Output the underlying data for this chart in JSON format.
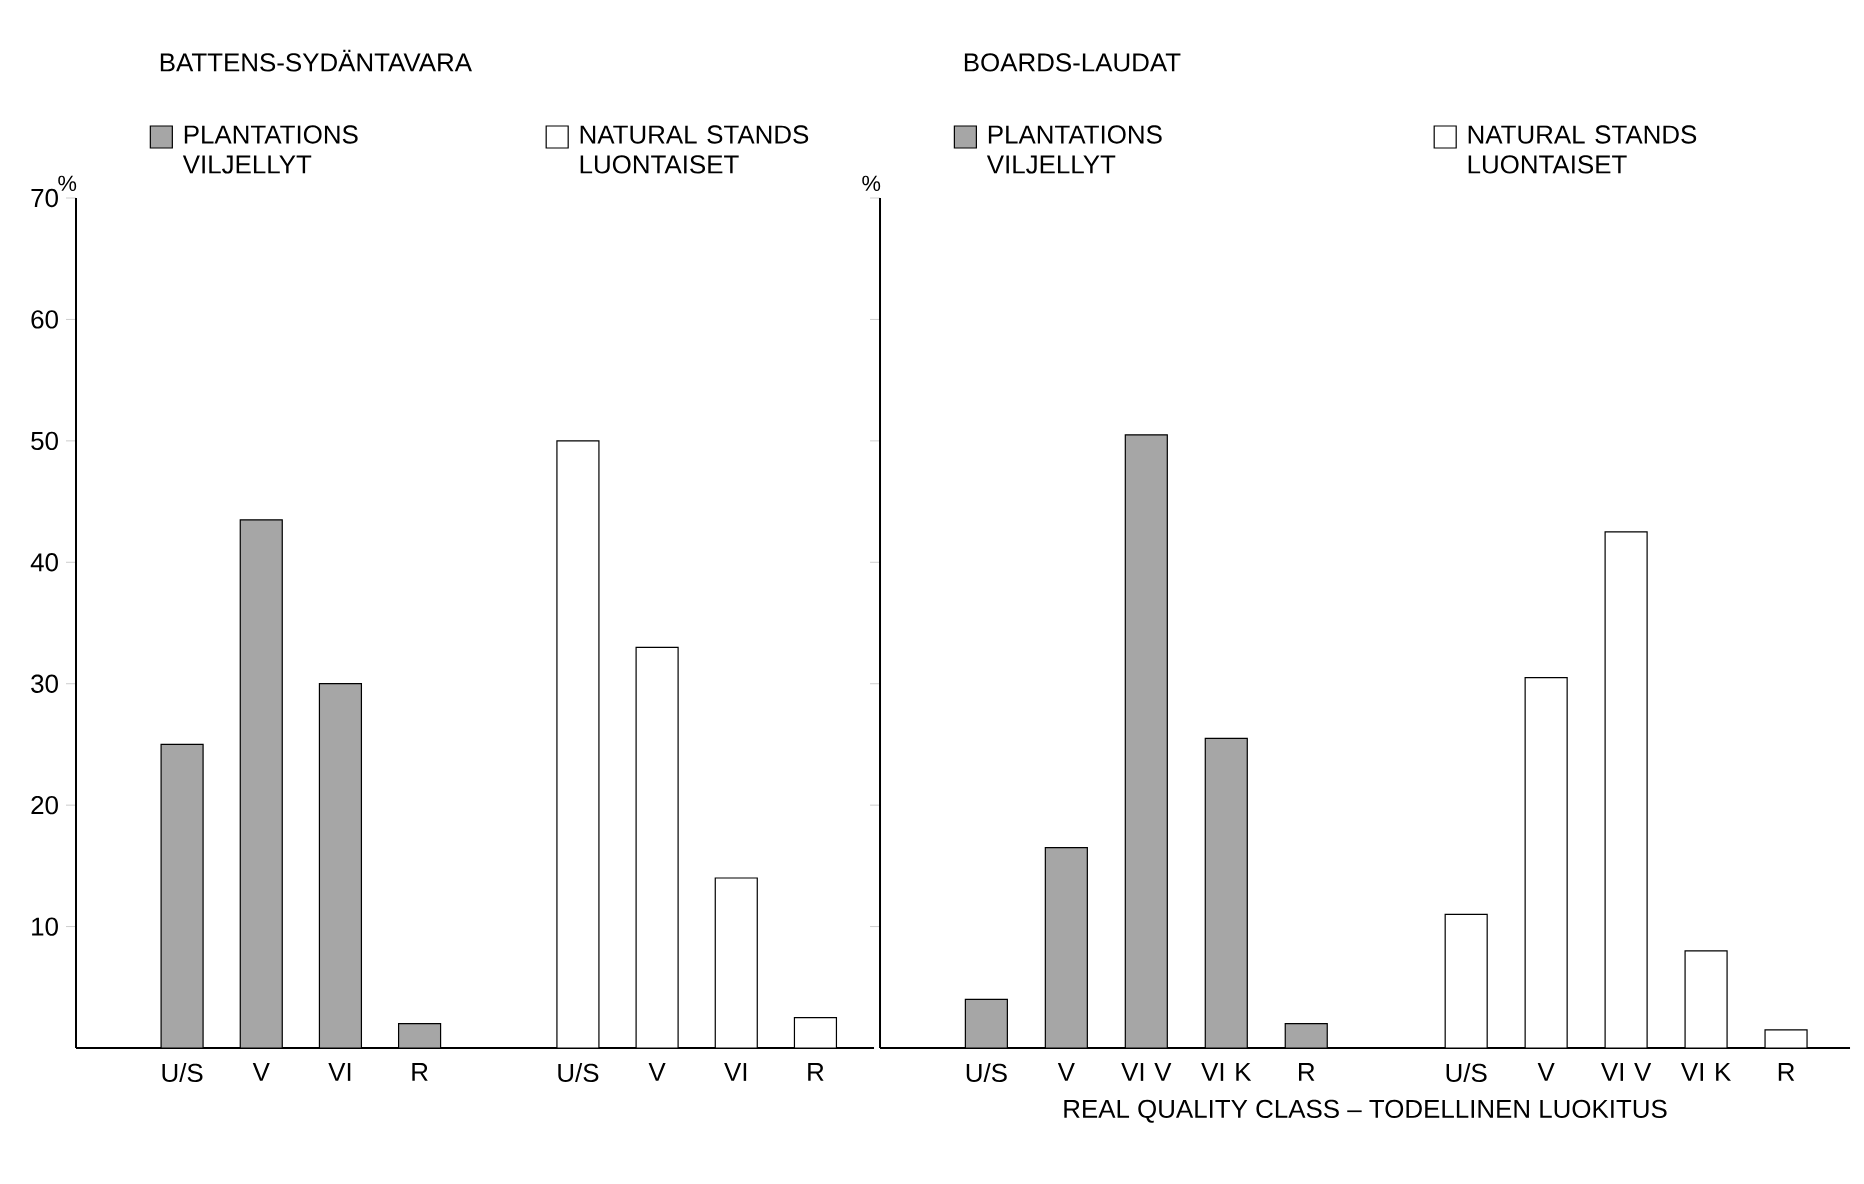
{
  "chart_data": [
    {
      "type": "bar",
      "title": "BATTENS-SYDÄNTAVARA",
      "ylabel": "%",
      "categories": [
        "U/S",
        "V",
        "VI",
        "R",
        null,
        "U/S",
        "V",
        "VI",
        "R"
      ],
      "series": [
        {
          "name": "PLANTATIONS VILJELLYT",
          "color": "#a6a6a6",
          "values": [
            25,
            43.5,
            30,
            2,
            null,
            null,
            null,
            null,
            null
          ]
        },
        {
          "name": "NATURAL STANDS LUONTAISET",
          "color": "#ffffff",
          "values": [
            null,
            null,
            null,
            null,
            null,
            50,
            33,
            14,
            2.5
          ]
        }
      ],
      "ylim": [
        0,
        70
      ],
      "yticks": [
        10,
        20,
        30,
        40,
        50,
        60,
        70
      ],
      "legend": "top"
    },
    {
      "type": "bar",
      "title": "BOARDS-LAUDAT",
      "ylabel": "%",
      "xlabel": "REAL QUALITY CLASS – TODELLINEN LUOKITUS",
      "categories": [
        "U/S",
        "V",
        "VI V",
        "VI K",
        "R",
        null,
        "U/S",
        "V",
        "VI V",
        "VI K",
        "R"
      ],
      "series": [
        {
          "name": "PLANTATIONS VILJELLYT",
          "color": "#a6a6a6",
          "values": [
            4,
            16.5,
            50.5,
            25.5,
            2,
            null,
            null,
            null,
            null,
            null,
            null
          ]
        },
        {
          "name": "NATURAL STANDS LUONTAISET",
          "color": "#ffffff",
          "values": [
            null,
            null,
            null,
            null,
            null,
            null,
            11,
            30.5,
            42.5,
            8,
            1.5
          ]
        }
      ],
      "ylim": [
        0,
        70
      ],
      "yticks": [
        10,
        20,
        30,
        40,
        50,
        60,
        70
      ],
      "tick_labels": "x",
      "legend": "top"
    }
  ]
}
